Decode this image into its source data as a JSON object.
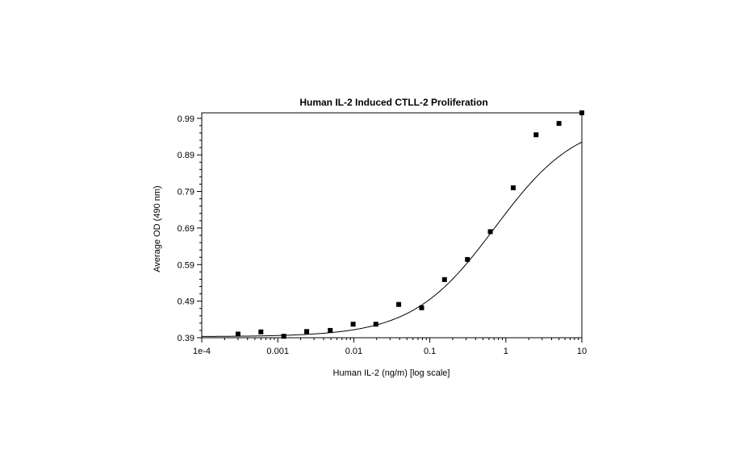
{
  "chart_data": {
    "type": "scatter",
    "title": "Human IL-2 Induced CTLL-2 Proliferation",
    "xlabel": "Human IL-2 (ng/m) [log scale]",
    "ylabel": "Average OD (490 nm)",
    "xscale": "log",
    "xlim": [
      0.0001,
      10
    ],
    "ylim": [
      0.39,
      1.005
    ],
    "x_ticks": [
      {
        "value": 0.0001,
        "label": "1e-4"
      },
      {
        "value": 0.001,
        "label": "0.001"
      },
      {
        "value": 0.01,
        "label": "0.01"
      },
      {
        "value": 0.1,
        "label": "0.1"
      },
      {
        "value": 1,
        "label": "1"
      },
      {
        "value": 10,
        "label": "10"
      }
    ],
    "y_ticks": [
      {
        "value": 0.39,
        "label": "0.39"
      },
      {
        "value": 0.49,
        "label": "0.49"
      },
      {
        "value": 0.59,
        "label": "0.59"
      },
      {
        "value": 0.69,
        "label": "0.69"
      },
      {
        "value": 0.79,
        "label": "0.79"
      },
      {
        "value": 0.89,
        "label": "0.89"
      },
      {
        "value": 0.99,
        "label": "0.99"
      }
    ],
    "grid": false,
    "series": [
      {
        "kind": "points",
        "x": [
          0.0003,
          0.0006,
          0.0012,
          0.0024,
          0.0049,
          0.0098,
          0.0195,
          0.039,
          0.078,
          0.156,
          0.3125,
          0.625,
          1.25,
          2.5,
          5,
          10
        ],
        "y": [
          0.4,
          0.406,
          0.394,
          0.407,
          0.41,
          0.427,
          0.427,
          0.481,
          0.472,
          0.549,
          0.604,
          0.68,
          0.8,
          0.945,
          0.976,
          1.005
        ]
      },
      {
        "kind": "fit-curve",
        "bottom": 0.393,
        "top": 0.99,
        "ec50": 0.72,
        "hill": 0.8
      }
    ]
  }
}
